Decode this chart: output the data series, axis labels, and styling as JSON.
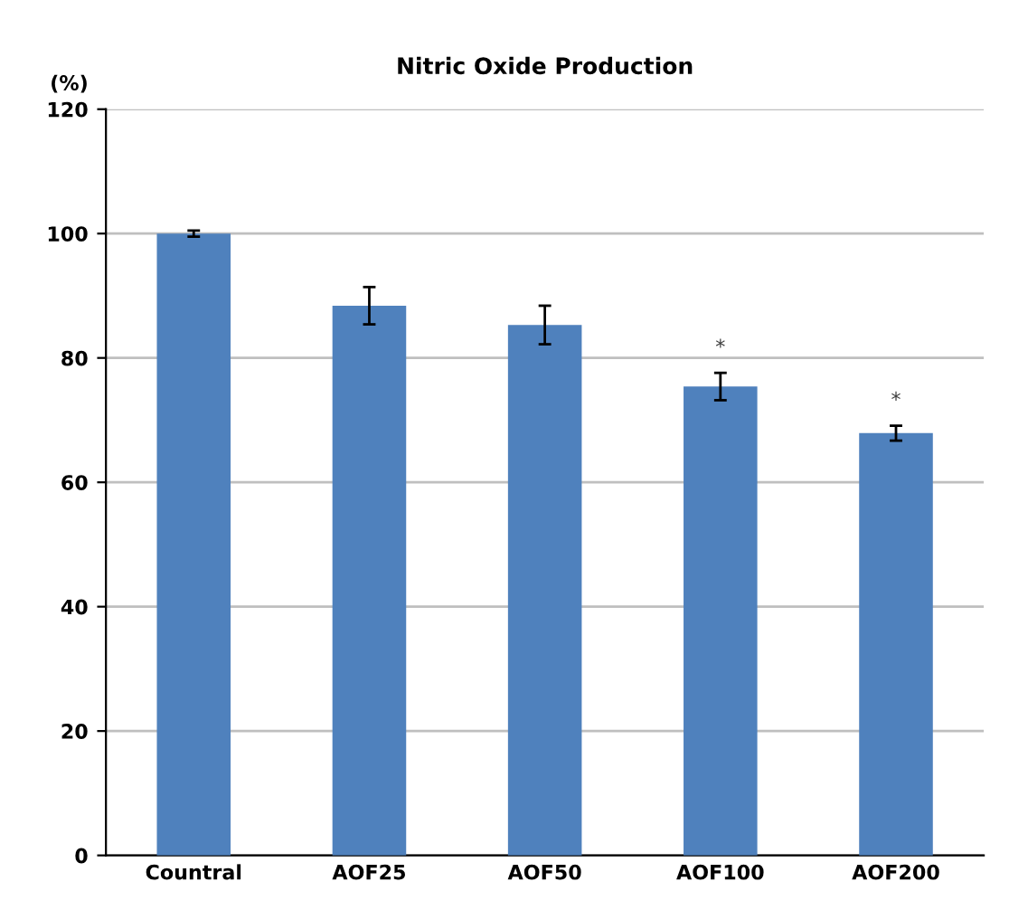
{
  "chart_data": {
    "type": "bar",
    "title": "Nitric Oxide Production",
    "ylabel": "(%)",
    "categories": [
      "Countral",
      "AOF25",
      "AOF50",
      "AOF100",
      "AOF200"
    ],
    "values": [
      100,
      88.4,
      85.3,
      75.4,
      67.9
    ],
    "errors": [
      0.5,
      3,
      3.1,
      2.2,
      1.2
    ],
    "color": "#4f81bd",
    "ylim": [
      0,
      120
    ],
    "yticks": [
      0,
      20,
      40,
      60,
      80,
      100,
      120
    ],
    "grid": "y",
    "annotations": [
      "*",
      "*"
    ]
  }
}
